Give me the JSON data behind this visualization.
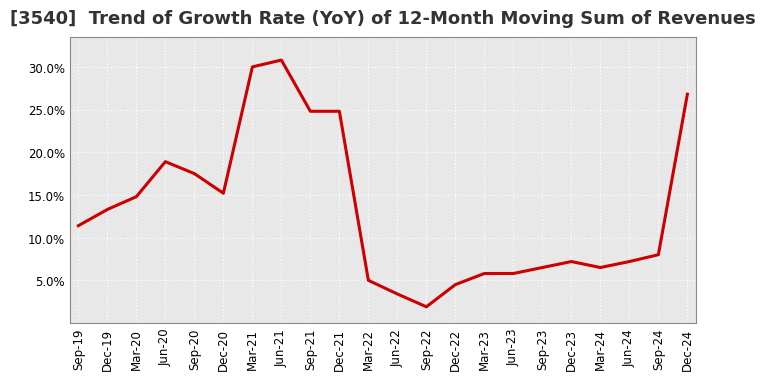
{
  "title": "[3540]  Trend of Growth Rate (YoY) of 12-Month Moving Sum of Revenues",
  "x_labels": [
    "Sep-19",
    "Dec-19",
    "Mar-20",
    "Jun-20",
    "Sep-20",
    "Dec-20",
    "Mar-21",
    "Jun-21",
    "Sep-21",
    "Dec-21",
    "Mar-22",
    "Jun-22",
    "Sep-22",
    "Dec-22",
    "Mar-23",
    "Jun-23",
    "Sep-23",
    "Dec-23",
    "Mar-24",
    "Jun-24",
    "Sep-24",
    "Dec-24"
  ],
  "y_values": [
    0.114,
    0.133,
    0.148,
    0.189,
    0.175,
    0.152,
    0.3,
    0.308,
    0.248,
    0.248,
    0.05,
    0.034,
    0.019,
    0.045,
    0.058,
    0.058,
    0.065,
    0.072,
    0.065,
    0.072,
    0.08,
    0.268
  ],
  "line_color": "#cc0000",
  "line_width": 2.2,
  "ylim": [
    0.0,
    0.335
  ],
  "yticks": [
    0.05,
    0.1,
    0.15,
    0.2,
    0.25,
    0.3
  ],
  "plot_bg_color": "#e8e8e8",
  "fig_bg_color": "#ffffff",
  "grid_color": "#ffffff",
  "title_fontsize": 13,
  "tick_fontsize": 8.5
}
